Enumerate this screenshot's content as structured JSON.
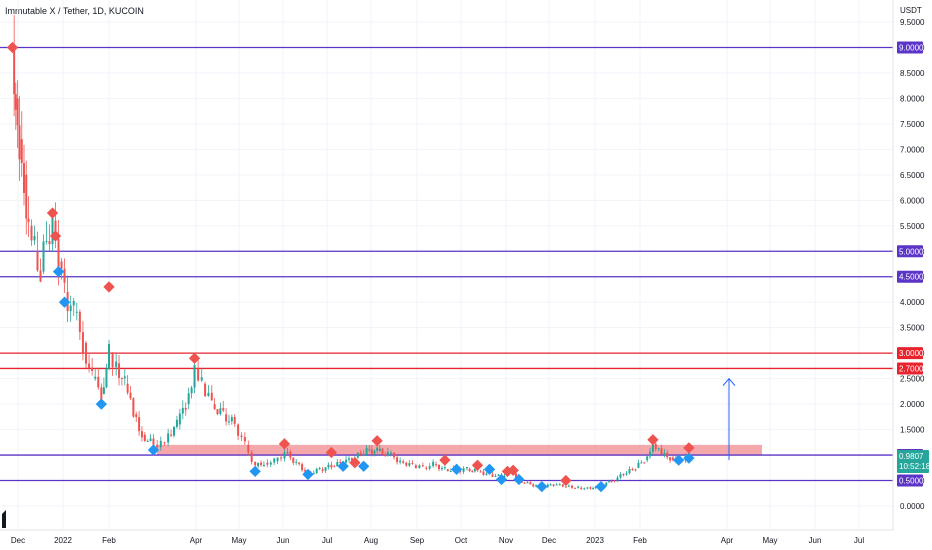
{
  "header": {
    "symbol_title": "Immutable X / Tether, 1D, KUCOIN",
    "currency": "USDT"
  },
  "chart_data": {
    "type": "candlestick",
    "y_axis": {
      "ticks": [
        "9.5000",
        "9.0000",
        "8.5000",
        "8.0000",
        "7.5000",
        "7.0000",
        "6.5000",
        "6.0000",
        "5.5000",
        "5.0000",
        "4.5000",
        "4.0000",
        "3.5000",
        "3.0000",
        "2.5000",
        "2.0000",
        "1.5000",
        "1.0000",
        "0.5000",
        "0.0000"
      ],
      "range": [
        -0.3,
        9.9
      ]
    },
    "x_axis": {
      "ticks": [
        "Dec",
        "2022",
        "Feb",
        "Apr",
        "May",
        "Jun",
        "Jul",
        "Aug",
        "Sep",
        "Oct",
        "Nov",
        "Dec",
        "2023",
        "Feb",
        "Apr",
        "May",
        "Jun",
        "Jul"
      ]
    },
    "horizontal_levels": [
      {
        "value": 9.0,
        "label": "9.0000",
        "color": "#5b35c7"
      },
      {
        "value": 5.0,
        "label": "5.0000",
        "color": "#5b35c7"
      },
      {
        "value": 4.5,
        "label": "4.5000",
        "color": "#5b35c7"
      },
      {
        "value": 3.0,
        "label": "3.0000",
        "color": "#e8232e"
      },
      {
        "value": 2.7,
        "label": "2.7000",
        "color": "#e8232e"
      },
      {
        "value": 1.0,
        "label": "1.0000",
        "color": "#5b35c7"
      },
      {
        "value": 0.5,
        "label": "0.5000",
        "color": "#5b35c7"
      }
    ],
    "price_tag": {
      "value": 0.9807,
      "label": "0.9807",
      "countdown": "10:52:18",
      "color": "#26a69a"
    },
    "resistance_zone": {
      "low": 1.0,
      "high": 1.2,
      "x_start": "Mar",
      "x_end": "Apr",
      "color": "#f28b8f"
    },
    "projection_arrow": {
      "from": 0.9,
      "to": 2.5,
      "x": "Mar",
      "color": "#2962ff"
    },
    "price_path": [
      [
        "Nov-26",
        9.0
      ],
      [
        "Nov-29",
        8.0
      ],
      [
        "Dec-02",
        7.2
      ],
      [
        "Dec-05",
        6.5
      ],
      [
        "Dec-08",
        5.5
      ],
      [
        "Dec-12",
        5.0
      ],
      [
        "Dec-16",
        4.6
      ],
      [
        "Dec-20",
        5.2
      ],
      [
        "Dec-24",
        5.6
      ],
      [
        "Dec-28",
        4.8
      ],
      [
        "2022-01-02",
        4.2
      ],
      [
        "Jan-08",
        3.8
      ],
      [
        "Jan-14",
        3.2
      ],
      [
        "Jan-20",
        2.5
      ],
      [
        "Jan-26",
        2.2
      ],
      [
        "Feb-01",
        3.0
      ],
      [
        "Feb-06",
        2.8
      ],
      [
        "Feb-12",
        2.4
      ],
      [
        "Feb-18",
        1.8
      ],
      [
        "Feb-24",
        1.4
      ],
      [
        "Mar-02",
        1.2
      ],
      [
        "Mar-07",
        1.25
      ],
      [
        "Mar-12",
        1.4
      ],
      [
        "Mar-18",
        1.6
      ],
      [
        "Mar-24",
        2.0
      ],
      [
        "Mar-30",
        2.7
      ],
      [
        "Apr-05",
        2.4
      ],
      [
        "Apr-12",
        2.0
      ],
      [
        "Apr-20",
        1.8
      ],
      [
        "Apr-28",
        1.6
      ],
      [
        "May-05",
        1.2
      ],
      [
        "May-12",
        0.78
      ],
      [
        "May-18",
        0.85
      ],
      [
        "May-25",
        0.88
      ],
      [
        "Jun-02",
        1.05
      ],
      [
        "Jun-10",
        0.85
      ],
      [
        "Jun-18",
        0.64
      ],
      [
        "Jun-26",
        0.72
      ],
      [
        "Jul-04",
        0.78
      ],
      [
        "Jul-12",
        0.85
      ],
      [
        "Jul-20",
        0.95
      ],
      [
        "Jul-28",
        1.1
      ],
      [
        "Aug-05",
        1.08
      ],
      [
        "Aug-12",
        1.02
      ],
      [
        "Aug-20",
        0.88
      ],
      [
        "Aug-28",
        0.8
      ],
      [
        "Sep-05",
        0.75
      ],
      [
        "Sep-12",
        0.82
      ],
      [
        "Sep-20",
        0.72
      ],
      [
        "Sep-28",
        0.7
      ],
      [
        "Oct-05",
        0.73
      ],
      [
        "Oct-12",
        0.68
      ],
      [
        "Oct-20",
        0.62
      ],
      [
        "Oct-28",
        0.57
      ],
      [
        "Nov-04",
        0.66
      ],
      [
        "Nov-10",
        0.5
      ],
      [
        "Nov-18",
        0.42
      ],
      [
        "Nov-26",
        0.38
      ],
      [
        "Dec-04",
        0.42
      ],
      [
        "Dec-12",
        0.39
      ],
      [
        "Dec-20",
        0.36
      ],
      [
        "Dec-28",
        0.34
      ],
      [
        "2023-01-05",
        0.38
      ],
      [
        "Jan-12",
        0.5
      ],
      [
        "Jan-20",
        0.62
      ],
      [
        "Jan-28",
        0.75
      ],
      [
        "Feb-04",
        0.9
      ],
      [
        "Feb-10",
        1.22
      ],
      [
        "Feb-16",
        1.0
      ],
      [
        "Feb-22",
        0.95
      ],
      [
        "Feb-28",
        0.9
      ],
      [
        "Mar-05",
        0.98
      ]
    ],
    "markers": [
      {
        "date": "Nov-26",
        "price": 9.0,
        "kind": "top"
      },
      {
        "date": "Dec-24",
        "price": 5.75,
        "kind": "top"
      },
      {
        "date": "Dec-26",
        "price": 5.3,
        "kind": "top"
      },
      {
        "date": "Dec-28",
        "price": 4.6,
        "kind": "bottom"
      },
      {
        "date": "2022-01-02",
        "price": 4.0,
        "kind": "bottom"
      },
      {
        "date": "Feb-01",
        "price": 4.3,
        "kind": "top"
      },
      {
        "date": "Jan-26",
        "price": 2.0,
        "kind": "bottom"
      },
      {
        "date": "Mar-02",
        "price": 1.1,
        "kind": "bottom"
      },
      {
        "date": "Mar-30",
        "price": 2.9,
        "kind": "top"
      },
      {
        "date": "May-12",
        "price": 0.68,
        "kind": "bottom"
      },
      {
        "date": "Jun-02",
        "price": 1.22,
        "kind": "top"
      },
      {
        "date": "Jun-18",
        "price": 0.62,
        "kind": "bottom"
      },
      {
        "date": "Jul-04",
        "price": 1.05,
        "kind": "top"
      },
      {
        "date": "Jul-12",
        "price": 0.78,
        "kind": "bottom"
      },
      {
        "date": "Jul-20",
        "price": 0.85,
        "kind": "top"
      },
      {
        "date": "Jul-26",
        "price": 0.78,
        "kind": "bottom"
      },
      {
        "date": "Aug-05",
        "price": 1.28,
        "kind": "top"
      },
      {
        "date": "Sep-20",
        "price": 0.9,
        "kind": "top"
      },
      {
        "date": "Sep-28",
        "price": 0.72,
        "kind": "bottom"
      },
      {
        "date": "Oct-12",
        "price": 0.8,
        "kind": "top"
      },
      {
        "date": "Oct-20",
        "price": 0.72,
        "kind": "bottom"
      },
      {
        "date": "Oct-28",
        "price": 0.52,
        "kind": "bottom"
      },
      {
        "date": "Nov-02",
        "price": 0.68,
        "kind": "top"
      },
      {
        "date": "Nov-06",
        "price": 0.7,
        "kind": "top"
      },
      {
        "date": "Nov-10",
        "price": 0.52,
        "kind": "bottom"
      },
      {
        "date": "Nov-26",
        "price": 0.38,
        "kind": "bottom"
      },
      {
        "date": "Dec-12",
        "price": 0.5,
        "kind": "top"
      },
      {
        "date": "2023-01-05",
        "price": 0.38,
        "kind": "bottom"
      },
      {
        "date": "Feb-10",
        "price": 1.3,
        "kind": "top"
      },
      {
        "date": "Feb-28",
        "price": 0.9,
        "kind": "bottom"
      },
      {
        "date": "Mar-05",
        "price": 0.94,
        "kind": "bottom"
      },
      {
        "date": "Mar-05b",
        "price": 1.14,
        "kind": "top"
      }
    ]
  },
  "colors": {
    "up": "#26a69a",
    "down": "#ef5350",
    "marker_top": "#ef5350",
    "marker_bottom": "#2196f3",
    "axis_text": "#131722",
    "grid": "#f0f3fa"
  },
  "watermark_icon": "tradingview-logo-icon"
}
